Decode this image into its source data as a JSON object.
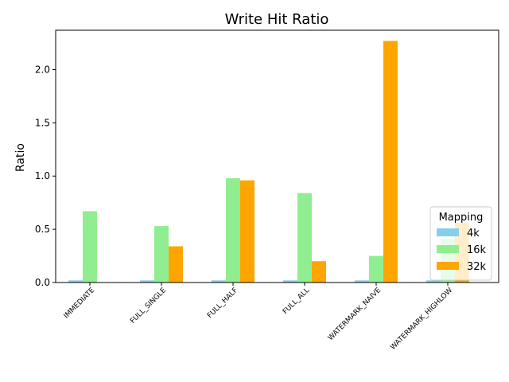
{
  "chart_data": {
    "type": "bar",
    "title": "Write Hit Ratio",
    "xlabel": "",
    "ylabel": "Ratio",
    "ylim": [
      0,
      2.37
    ],
    "yticks": [
      "0.0",
      "0.5",
      "1.0",
      "1.5",
      "2.0"
    ],
    "categories": [
      "IMMEDIATE",
      "FULL_SINGLE",
      "FULL_HALF",
      "FULL_ALL",
      "WATERMARK_NAIVE",
      "WATERMARK_HIGHLOW"
    ],
    "series": [
      {
        "name": "4k",
        "color": "#87ceeb",
        "values": [
          0.02,
          0.02,
          0.02,
          0.02,
          0.02,
          0.02
        ]
      },
      {
        "name": "16k",
        "color": "#90ee90",
        "values": [
          0.67,
          0.53,
          0.98,
          0.84,
          0.25,
          0.41
        ]
      },
      {
        "name": "32k",
        "color": "#ffa500",
        "values": [
          0,
          0.34,
          0.96,
          0.2,
          2.27,
          0.56
        ]
      }
    ],
    "legend": {
      "title": "Mapping",
      "placement": "lower-right"
    },
    "grid": false
  }
}
